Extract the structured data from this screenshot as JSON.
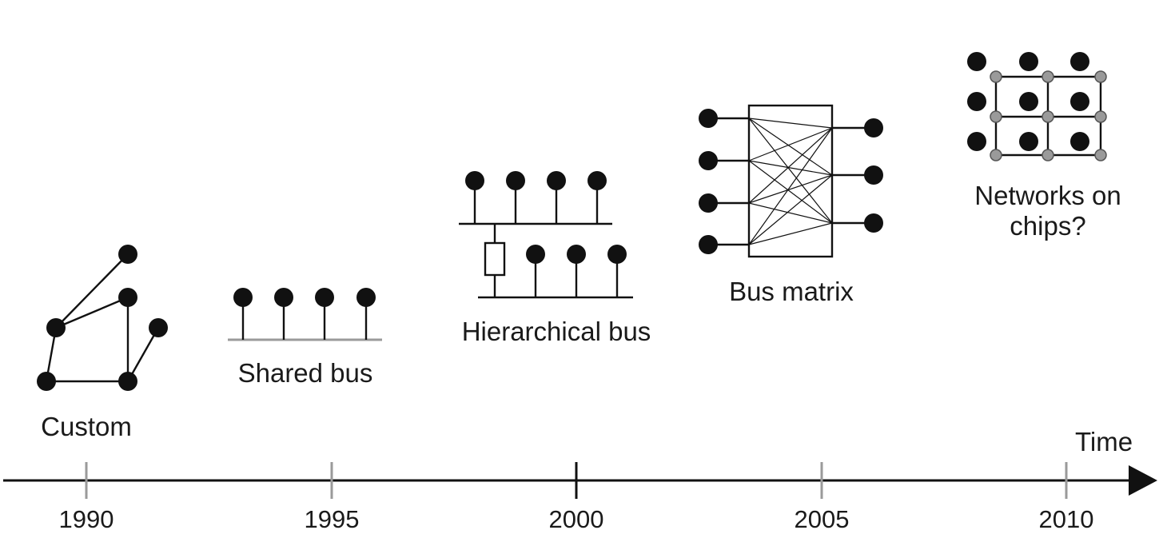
{
  "timeline": {
    "axis_label": "Time",
    "ticks": [
      "1990",
      "1995",
      "2000",
      "2005",
      "2010"
    ]
  },
  "architectures": [
    {
      "id": "custom",
      "label": "Custom"
    },
    {
      "id": "shared-bus",
      "label": "Shared bus"
    },
    {
      "id": "hierarchical-bus",
      "label": "Hierarchical bus"
    },
    {
      "id": "bus-matrix",
      "label": "Bus matrix"
    },
    {
      "id": "noc",
      "label_line1": "Networks on",
      "label_line2": "chips?"
    }
  ]
}
